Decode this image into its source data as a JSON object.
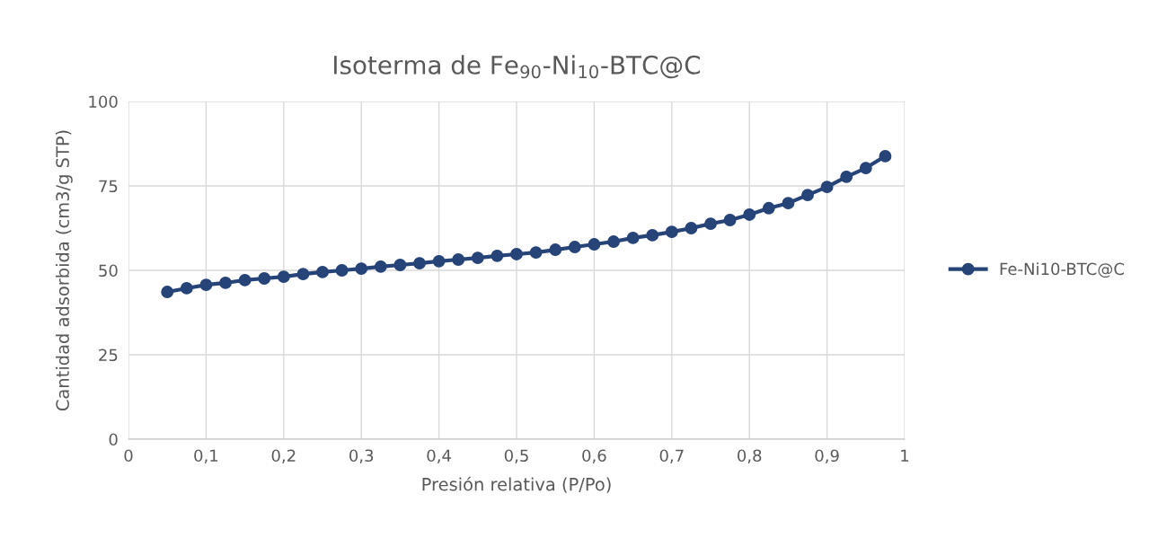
{
  "chart_data": {
    "type": "line",
    "title": "Isoterma de Fe$_{90}$-Ni$_{10}$-BTC@C",
    "xlabel": "Presión relativa (P/Po)",
    "ylabel": "Cantidad adsorbida (cm3/g STP)",
    "x": [
      0.05,
      0.075,
      0.1,
      0.125,
      0.15,
      0.175,
      0.2,
      0.225,
      0.25,
      0.275,
      0.3,
      0.325,
      0.35,
      0.375,
      0.4,
      0.425,
      0.45,
      0.475,
      0.5,
      0.525,
      0.55,
      0.575,
      0.6,
      0.625,
      0.65,
      0.675,
      0.7,
      0.725,
      0.75,
      0.775,
      0.8,
      0.825,
      0.85,
      0.875,
      0.9,
      0.925,
      0.95,
      0.975
    ],
    "series": [
      {
        "name": "Fe-Ni10-BTC@C",
        "color": "#264478",
        "values": [
          43.6,
          44.7,
          45.7,
          46.3,
          47.1,
          47.6,
          48.1,
          48.9,
          49.5,
          50.0,
          50.5,
          51.1,
          51.6,
          52.1,
          52.7,
          53.2,
          53.7,
          54.3,
          54.8,
          55.3,
          56.1,
          56.9,
          57.7,
          58.5,
          59.6,
          60.4,
          61.4,
          62.5,
          63.8,
          64.9,
          66.5,
          68.4,
          69.9,
          72.3,
          74.7,
          77.7,
          80.3,
          83.8
        ]
      }
    ],
    "xlim": [
      0,
      1
    ],
    "xticks": [
      0,
      {
        "value": 0.1,
        "label": "0,1"
      },
      {
        "value": 0.2,
        "label": "0,2"
      },
      {
        "value": 0.3,
        "label": "0,3"
      },
      {
        "value": 0.4,
        "label": "0,4"
      },
      {
        "value": 0.5,
        "label": "0,5"
      },
      {
        "value": 0.6,
        "label": "0,6"
      },
      {
        "value": 0.7,
        "label": "0,7"
      },
      {
        "value": 0.8,
        "label": "0,8"
      },
      {
        "value": 0.9,
        "label": "0,9"
      },
      1
    ],
    "ylim": [
      0,
      100
    ],
    "yticks": [
      0,
      25,
      50,
      75,
      100
    ],
    "grid": true,
    "legend": "right",
    "marker": "circle",
    "line_style": "solid"
  }
}
